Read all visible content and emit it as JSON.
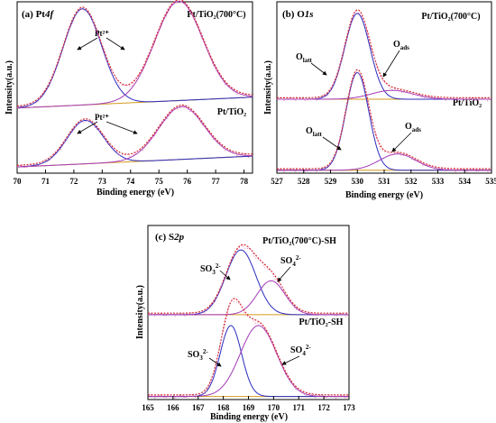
{
  "figure": {
    "panels": [
      {
        "id": "a",
        "label": "(a) Pt",
        "label_element": "4f",
        "ylabel": "Intensity(a.u.)",
        "xlabel": "Binding energy (eV)",
        "xlim": [
          70,
          78.3
        ],
        "ticks": [
          "70",
          "71",
          "72",
          "73",
          "74",
          "75",
          "76",
          "77",
          "78"
        ],
        "tick_values": [
          70,
          71,
          72,
          73,
          74,
          75,
          76,
          77,
          78
        ],
        "spectra": [
          {
            "name": "Pt/TiO₂(700°C)",
            "peak_label": "Pt²⁺"
          },
          {
            "name": "Pt/TiO₂",
            "peak_label": "Pt²⁺"
          }
        ]
      },
      {
        "id": "b",
        "label": "(b) O",
        "label_element": "1s",
        "ylabel": "Intensity(a.u.)",
        "xlabel": "Binding energy (eV)",
        "xlim": [
          527,
          535
        ],
        "ticks": [
          "527",
          "528",
          "529",
          "530",
          "531",
          "532",
          "533",
          "534",
          "535"
        ],
        "tick_values": [
          527,
          528,
          529,
          530,
          531,
          532,
          533,
          534,
          535
        ],
        "spectra": [
          {
            "name": "Pt/TiO₂(700°C)",
            "peak_labels": [
              "Oₗₐₜₜ",
              "Oₐₔₛ"
            ]
          },
          {
            "name": "Pt/TiO₂",
            "peak_labels": [
              "Oₗₐₜₜ",
              "Oₐₔₛ"
            ]
          }
        ]
      },
      {
        "id": "c",
        "label": "(c) S",
        "label_element": "2p",
        "ylabel": "Intensity(a.u.)",
        "xlabel": "Binding energy (eV)",
        "xlim": [
          165,
          173
        ],
        "ticks": [
          "165",
          "166",
          "167",
          "168",
          "169",
          "170",
          "171",
          "172",
          "173"
        ],
        "tick_values": [
          165,
          166,
          167,
          168,
          169,
          170,
          171,
          172,
          173
        ],
        "spectra": [
          {
            "name": "Pt/TiO₂(700°C)-SH",
            "peak_labels": [
              "SO₃²⁻",
              "SO₄²⁻"
            ]
          },
          {
            "name": "Pt/TiO₂-SH",
            "peak_labels": [
              "SO₃²⁻",
              "SO₄²⁻"
            ]
          }
        ]
      }
    ]
  },
  "colors": {
    "fit_total": "#d2262a",
    "raw": "#e35b9c",
    "peak_blue": "#2b2bbf",
    "peak_purple": "#a33ab6",
    "background": "#d49a1e",
    "axis": "#000000"
  },
  "chart_data": [
    {
      "type": "line",
      "title": "(a) Pt4f",
      "xlabel": "Binding energy (eV)",
      "ylabel": "Intensity(a.u.)",
      "xlim": [
        70,
        78.3
      ],
      "series": [
        {
          "name": "Pt/TiO₂(700°C)",
          "components": [
            {
              "center": 72.3,
              "fwhm": 1.6,
              "height": 0.62,
              "color": "peak_blue"
            },
            {
              "center": 75.7,
              "fwhm": 2.0,
              "height": 0.64,
              "color": "peak_purple"
            }
          ],
          "background": {
            "x": [
              70,
              78.3
            ],
            "y": [
              0.42,
              0.49
            ]
          },
          "offset": 0.5
        },
        {
          "name": "Pt/TiO₂",
          "components": [
            {
              "center": 72.4,
              "fwhm": 1.5,
              "height": 0.28,
              "color": "peak_blue"
            },
            {
              "center": 75.8,
              "fwhm": 1.9,
              "height": 0.34,
              "color": "peak_purple"
            }
          ],
          "background": {
            "x": [
              70,
              78.3
            ],
            "y": [
              0.04,
              0.11
            ]
          },
          "offset": 0.0
        }
      ]
    },
    {
      "type": "line",
      "title": "(b) O1s",
      "xlabel": "Binding energy (eV)",
      "ylabel": "Intensity(a.u.)",
      "xlim": [
        527,
        535
      ],
      "series": [
        {
          "name": "Pt/TiO₂(700°C)",
          "components": [
            {
              "center": 530.0,
              "fwhm": 1.1,
              "height": 0.58,
              "color": "peak_blue"
            },
            {
              "center": 531.3,
              "fwhm": 1.8,
              "height": 0.06,
              "color": "peak_purple"
            }
          ],
          "background": {
            "x": [
              527,
              535
            ],
            "y": [
              0.5,
              0.5
            ]
          },
          "offset": 0.5
        },
        {
          "name": "Pt/TiO₂",
          "components": [
            {
              "center": 530.0,
              "fwhm": 1.0,
              "height": 0.66,
              "color": "peak_blue"
            },
            {
              "center": 531.5,
              "fwhm": 1.6,
              "height": 0.11,
              "color": "peak_purple"
            }
          ],
          "background": {
            "x": [
              527,
              535
            ],
            "y": [
              0.02,
              0.02
            ]
          },
          "offset": 0.0
        }
      ]
    },
    {
      "type": "line",
      "title": "(c) S2p",
      "xlabel": "Binding energy (eV)",
      "ylabel": "Intensity(a.u.)",
      "xlim": [
        165,
        173
      ],
      "series": [
        {
          "name": "Pt/TiO₂(700°C)-SH",
          "components": [
            {
              "center": 168.7,
              "fwhm": 1.4,
              "height": 0.42,
              "color": "peak_blue"
            },
            {
              "center": 169.9,
              "fwhm": 1.3,
              "height": 0.22,
              "color": "peak_purple"
            }
          ],
          "background": {
            "x": [
              165,
              173
            ],
            "y": [
              0.55,
              0.55
            ]
          },
          "offset": 0.55
        },
        {
          "name": "Pt/TiO₂-SH",
          "components": [
            {
              "center": 168.3,
              "fwhm": 1.0,
              "height": 0.46,
              "color": "peak_blue"
            },
            {
              "center": 169.4,
              "fwhm": 1.7,
              "height": 0.46,
              "color": "peak_purple"
            }
          ],
          "background": {
            "x": [
              165,
              173
            ],
            "y": [
              0.02,
              0.02
            ]
          },
          "offset": 0.0
        }
      ]
    }
  ]
}
